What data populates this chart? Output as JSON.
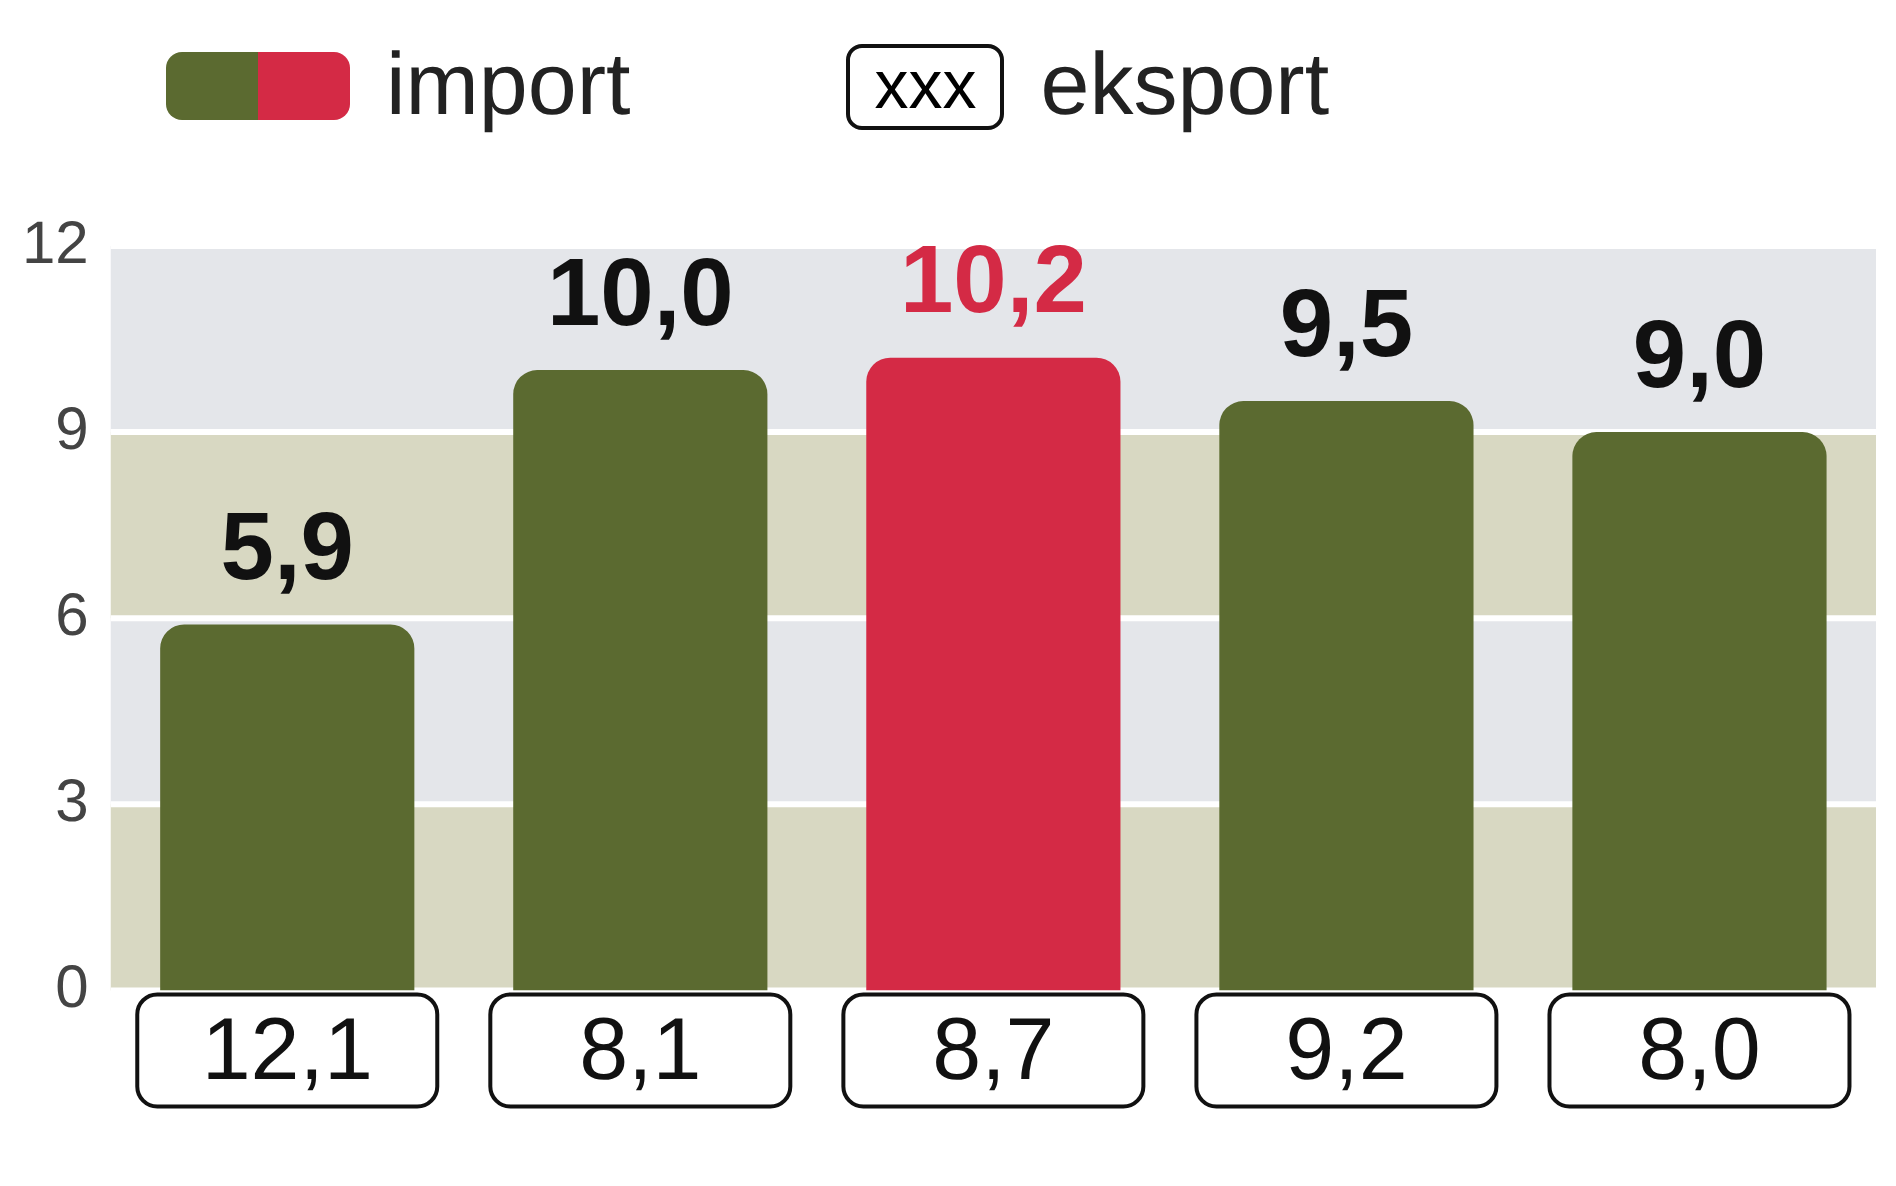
{
  "chart_data": {
    "type": "bar",
    "categories": [
      "12,1",
      "8,1",
      "8,7",
      "9,2",
      "8,0"
    ],
    "series": [
      {
        "name": "import",
        "colors": [
          "#5b6a30",
          "#5b6a30",
          "#d42a45",
          "#5b6a30",
          "#5b6a30"
        ],
        "values": [
          5.9,
          10.0,
          10.2,
          9.5,
          9.0
        ],
        "value_labels": [
          "5,9",
          "10,0",
          "10,2",
          "9,5",
          "9,0"
        ]
      }
    ],
    "annotations": [
      "xxx",
      "eksport"
    ],
    "ylim": [
      0,
      12
    ],
    "yticks": [
      0,
      3,
      6,
      9,
      12
    ],
    "grid": "y",
    "legend": "top left",
    "bands": [
      {
        "axis": "y",
        "from": 0,
        "to": 3,
        "color": "#d8d8c2"
      },
      {
        "axis": "y",
        "from": 3,
        "to": 6,
        "color": "#e4e6ea"
      },
      {
        "axis": "y",
        "from": 6,
        "to": 9,
        "color": "#d8d8c2"
      },
      {
        "axis": "y",
        "from": 9,
        "to": 12,
        "color": "#e4e6ea"
      }
    ]
  }
}
